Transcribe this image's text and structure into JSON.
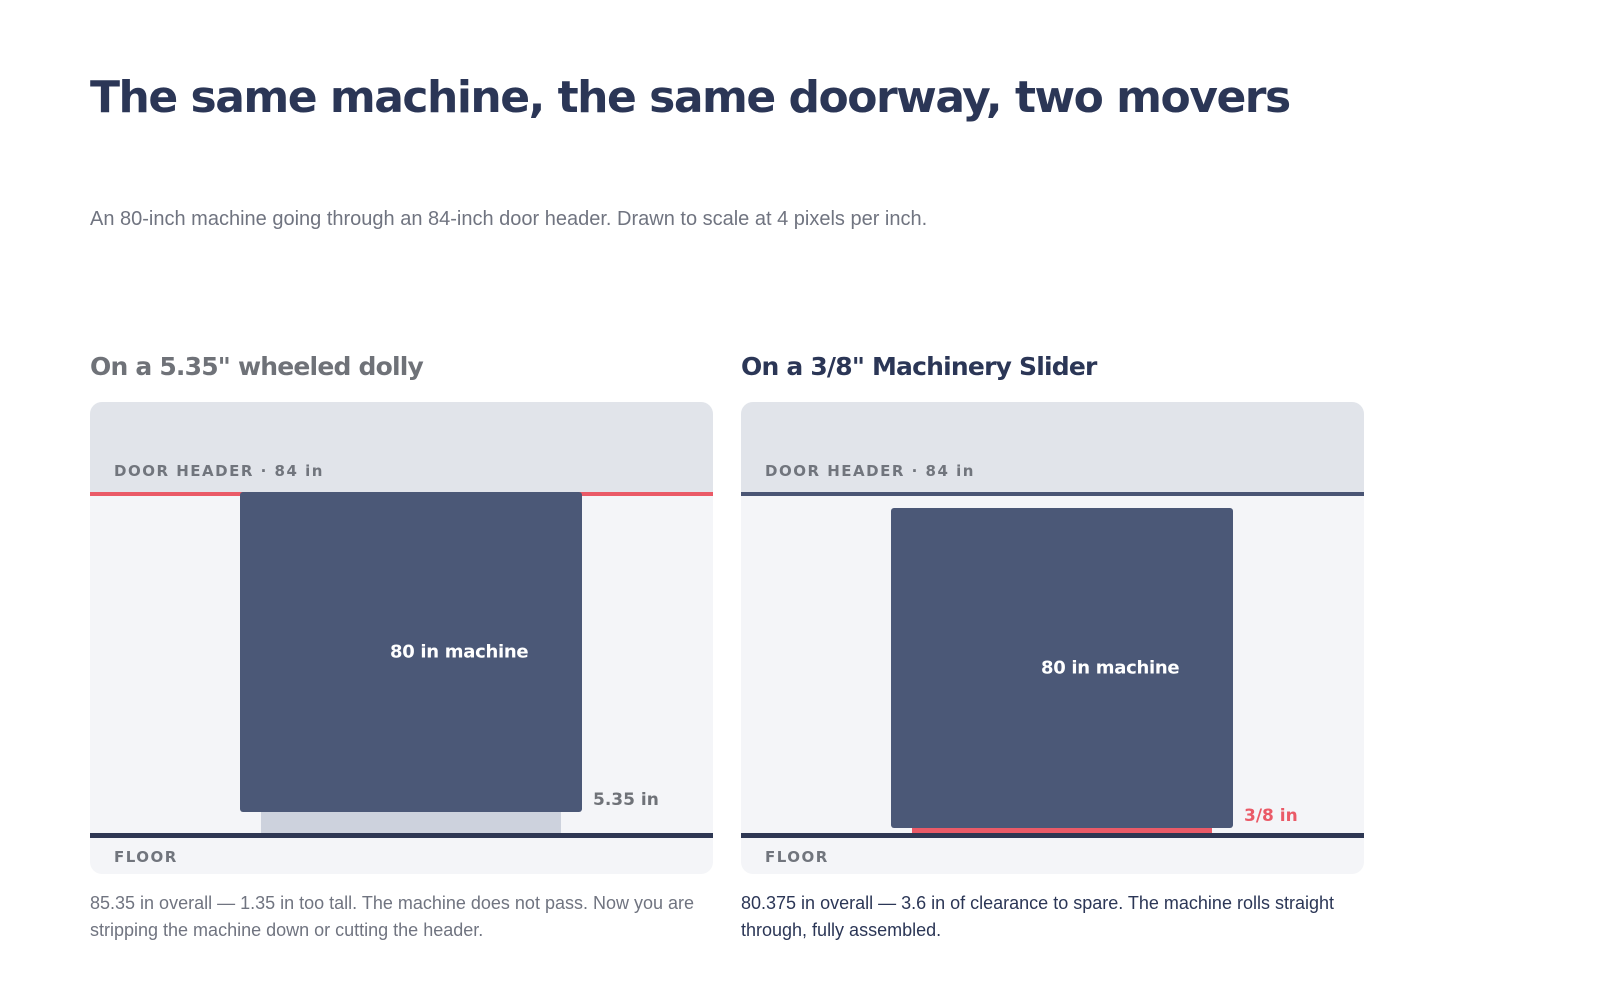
{
  "title": "The same machine, the same doorway, two movers",
  "subtitle": "An 80-inch machine going through an 84-inch door header. Drawn to scale at 4 pixels per inch.",
  "panels": [
    {
      "title": "On a 5.35\" wheeled dolly",
      "header_label": "DOOR HEADER · 84 in",
      "floor_label": "FLOOR",
      "machine_label": "80 in machine",
      "base_label": "5.35 in",
      "caption": "85.35 in overall — 1.35 in too tall. The machine does not pass. Now you are stripping the machine down or cutting the header."
    },
    {
      "title": "On a 3/8\" Machinery Slider",
      "header_label": "DOOR HEADER · 84 in",
      "floor_label": "FLOOR",
      "machine_label": "80 in machine",
      "base_label": "3/8 in",
      "caption": "80.375 in overall — 3.6 in of clearance to spare. The machine rolls straight through, fully assembled."
    }
  ],
  "chart_data": [
    {
      "type": "diagram",
      "door_header_in": 84,
      "machine_height_in": 80,
      "base_height_in": 5.35,
      "overall_in": 85.35,
      "fits": false
    },
    {
      "type": "diagram",
      "door_header_in": 84,
      "machine_height_in": 80,
      "base_height_in": 0.375,
      "overall_in": 80.375,
      "fits": true
    }
  ],
  "colors": {
    "machine": "#4b5877",
    "alert": "#ea5a67",
    "dolly_base": "#cdd2dd",
    "floor": "#2e3753",
    "title": "#2b3656"
  }
}
